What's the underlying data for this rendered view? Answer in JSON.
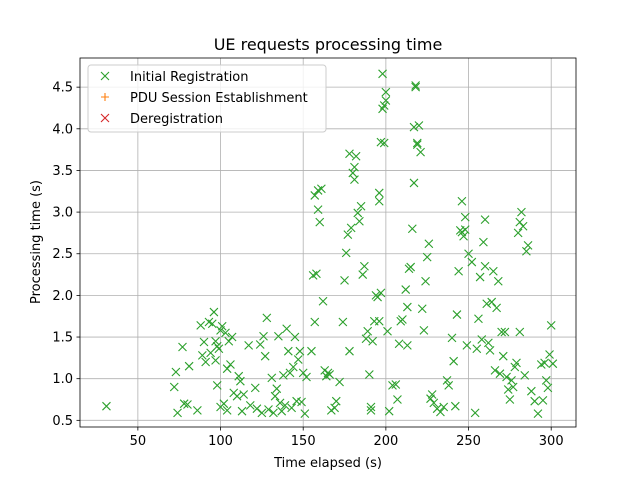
{
  "chart_data": {
    "type": "scatter",
    "title": "UE requests processing time",
    "xlabel": "Time elapsed (s)",
    "ylabel": "Processing time (s)",
    "xlim": [
      15,
      315
    ],
    "ylim": [
      0.42,
      4.85
    ],
    "xticks": [
      50,
      100,
      150,
      200,
      250,
      300
    ],
    "yticks": [
      0.5,
      1.0,
      1.5,
      2.0,
      2.5,
      3.0,
      3.5,
      4.0,
      4.5
    ],
    "grid": true,
    "legend_position": "top-left",
    "series": [
      {
        "name": "Initial Registration",
        "marker": "x",
        "color": "#2ca02c",
        "points": [
          [
            31,
            0.67
          ],
          [
            72,
            0.9
          ],
          [
            73,
            1.08
          ],
          [
            74,
            0.59
          ],
          [
            77,
            1.38
          ],
          [
            78,
            0.7
          ],
          [
            80,
            0.69
          ],
          [
            81,
            1.15
          ],
          [
            86,
            0.62
          ],
          [
            88,
            1.64
          ],
          [
            89,
            1.28
          ],
          [
            90,
            1.44
          ],
          [
            91,
            1.2
          ],
          [
            93,
            1.68
          ],
          [
            94,
            1.31
          ],
          [
            95,
            1.66
          ],
          [
            96,
            1.8
          ],
          [
            97,
            1.45
          ],
          [
            97,
            1.22
          ],
          [
            98,
            0.92
          ],
          [
            98,
            1.39
          ],
          [
            99,
            1.36
          ],
          [
            100,
            1.58
          ],
          [
            100,
            0.66
          ],
          [
            101,
            1.63
          ],
          [
            102,
            0.7
          ],
          [
            103,
            1.55
          ],
          [
            104,
            1.12
          ],
          [
            104,
            0.62
          ],
          [
            105,
            1.45
          ],
          [
            106,
            1.17
          ],
          [
            107,
            1.5
          ],
          [
            108,
            0.83
          ],
          [
            110,
            0.79
          ],
          [
            111,
            1.03
          ],
          [
            112,
            0.97
          ],
          [
            113,
            0.61
          ],
          [
            114,
            0.81
          ],
          [
            117,
            1.4
          ],
          [
            118,
            0.68
          ],
          [
            121,
            0.89
          ],
          [
            122,
            0.64
          ],
          [
            124,
            1.41
          ],
          [
            125,
            0.59
          ],
          [
            126,
            1.51
          ],
          [
            127,
            1.27
          ],
          [
            128,
            1.73
          ],
          [
            129,
            0.63
          ],
          [
            131,
            1.01
          ],
          [
            132,
            0.59
          ],
          [
            133,
            0.79
          ],
          [
            134,
            0.88
          ],
          [
            135,
            1.51
          ],
          [
            136,
            0.71
          ],
          [
            137,
            0.61
          ],
          [
            138,
            1.04
          ],
          [
            139,
            0.68
          ],
          [
            140,
            1.6
          ],
          [
            141,
            1.33
          ],
          [
            142,
            1.07
          ],
          [
            143,
            0.65
          ],
          [
            144,
            1.14
          ],
          [
            145,
            1.5
          ],
          [
            146,
            0.73
          ],
          [
            147,
            1.23
          ],
          [
            148,
            1.33
          ],
          [
            149,
            0.72
          ],
          [
            150,
            1.07
          ],
          [
            151,
            0.58
          ],
          [
            152,
            1.02
          ],
          [
            155,
            1.33
          ],
          [
            156,
            2.24
          ],
          [
            157,
            1.68
          ],
          [
            157,
            3.2
          ],
          [
            158,
            2.26
          ],
          [
            159,
            3.03
          ],
          [
            159,
            3.26
          ],
          [
            160,
            2.88
          ],
          [
            161,
            3.28
          ],
          [
            162,
            1.93
          ],
          [
            163,
            1.1
          ],
          [
            164,
            1.03
          ],
          [
            165,
            1.07
          ],
          [
            166,
            1.05
          ],
          [
            167,
            0.62
          ],
          [
            169,
            0.65
          ],
          [
            170,
            0.73
          ],
          [
            172,
            0.96
          ],
          [
            174,
            1.68
          ],
          [
            175,
            2.18
          ],
          [
            176,
            2.51
          ],
          [
            177,
            2.73
          ],
          [
            178,
            3.7
          ],
          [
            178,
            1.33
          ],
          [
            179,
            2.81
          ],
          [
            180,
            3.47
          ],
          [
            181,
            3.54
          ],
          [
            181,
            3.39
          ],
          [
            182,
            3.67
          ],
          [
            183,
            2.99
          ],
          [
            184,
            2.89
          ],
          [
            185,
            3.07
          ],
          [
            186,
            2.25
          ],
          [
            187,
            2.35
          ],
          [
            188,
            1.48
          ],
          [
            189,
            1.57
          ],
          [
            190,
            1.05
          ],
          [
            191,
            0.62
          ],
          [
            191,
            0.66
          ],
          [
            192,
            1.45
          ],
          [
            193,
            1.69
          ],
          [
            194,
            2.0
          ],
          [
            195,
            1.98
          ],
          [
            196,
            3.13
          ],
          [
            196,
            3.23
          ],
          [
            196,
            1.69
          ],
          [
            197,
            3.84
          ],
          [
            197,
            2.03
          ],
          [
            198,
            4.24
          ],
          [
            198,
            4.66
          ],
          [
            199,
            4.28
          ],
          [
            199,
            3.83
          ],
          [
            200,
            4.34
          ],
          [
            200,
            4.44
          ],
          [
            201,
            1.57
          ],
          [
            202,
            0.61
          ],
          [
            204,
            0.92
          ],
          [
            206,
            0.93
          ],
          [
            207,
            0.75
          ],
          [
            208,
            1.42
          ],
          [
            209,
            1.69
          ],
          [
            210,
            1.71
          ],
          [
            212,
            2.07
          ],
          [
            213,
            1.4
          ],
          [
            213,
            1.86
          ],
          [
            214,
            2.32
          ],
          [
            215,
            2.34
          ],
          [
            216,
            2.8
          ],
          [
            217,
            3.35
          ],
          [
            217,
            4.02
          ],
          [
            218,
            4.5
          ],
          [
            218,
            4.52
          ],
          [
            219,
            3.83
          ],
          [
            219,
            3.81
          ],
          [
            220,
            4.04
          ],
          [
            221,
            3.72
          ],
          [
            222,
            1.84
          ],
          [
            223,
            1.58
          ],
          [
            224,
            2.17
          ],
          [
            225,
            2.46
          ],
          [
            226,
            2.62
          ],
          [
            227,
            0.76
          ],
          [
            228,
            0.81
          ],
          [
            229,
            0.71
          ],
          [
            231,
            0.64
          ],
          [
            233,
            0.6
          ],
          [
            235,
            0.66
          ],
          [
            237,
            0.98
          ],
          [
            238,
            0.92
          ],
          [
            240,
            1.49
          ],
          [
            241,
            1.21
          ],
          [
            242,
            0.67
          ],
          [
            243,
            1.77
          ],
          [
            244,
            2.29
          ],
          [
            245,
            2.78
          ],
          [
            246,
            2.76
          ],
          [
            246,
            3.13
          ],
          [
            247,
            2.71
          ],
          [
            248,
            2.94
          ],
          [
            248,
            2.79
          ],
          [
            249,
            1.4
          ],
          [
            250,
            2.5
          ],
          [
            252,
            2.4
          ],
          [
            254,
            0.59
          ],
          [
            255,
            1.36
          ],
          [
            256,
            1.72
          ],
          [
            257,
            2.22
          ],
          [
            258,
            1.47
          ],
          [
            259,
            2.64
          ],
          [
            260,
            2.35
          ],
          [
            260,
            2.91
          ],
          [
            261,
            1.9
          ],
          [
            262,
            1.43
          ],
          [
            263,
            1.34
          ],
          [
            264,
            1.92
          ],
          [
            265,
            2.29
          ],
          [
            266,
            1.1
          ],
          [
            267,
            1.85
          ],
          [
            268,
            2.17
          ],
          [
            269,
            1.06
          ],
          [
            270,
            1.56
          ],
          [
            271,
            1.27
          ],
          [
            272,
            1.56
          ],
          [
            273,
            1.02
          ],
          [
            274,
            0.87
          ],
          [
            275,
            0.75
          ],
          [
            276,
            0.98
          ],
          [
            277,
            0.9
          ],
          [
            278,
            1.14
          ],
          [
            279,
            1.19
          ],
          [
            280,
            2.75
          ],
          [
            281,
            2.88
          ],
          [
            281,
            1.56
          ],
          [
            282,
            3.0
          ],
          [
            283,
            2.83
          ],
          [
            284,
            1.04
          ],
          [
            285,
            2.53
          ],
          [
            286,
            2.6
          ],
          [
            288,
            0.85
          ],
          [
            290,
            0.73
          ],
          [
            292,
            0.58
          ],
          [
            294,
            1.17
          ],
          [
            295,
            0.74
          ],
          [
            296,
            1.19
          ],
          [
            297,
            0.98
          ],
          [
            298,
            0.89
          ],
          [
            299,
            1.29
          ],
          [
            300,
            1.64
          ],
          [
            301,
            1.18
          ]
        ]
      },
      {
        "name": "PDU Session Establishment",
        "marker": "+",
        "color": "#ff7f0e",
        "points": []
      },
      {
        "name": "Deregistration",
        "marker": "x",
        "color": "#d62728",
        "points": []
      }
    ]
  }
}
